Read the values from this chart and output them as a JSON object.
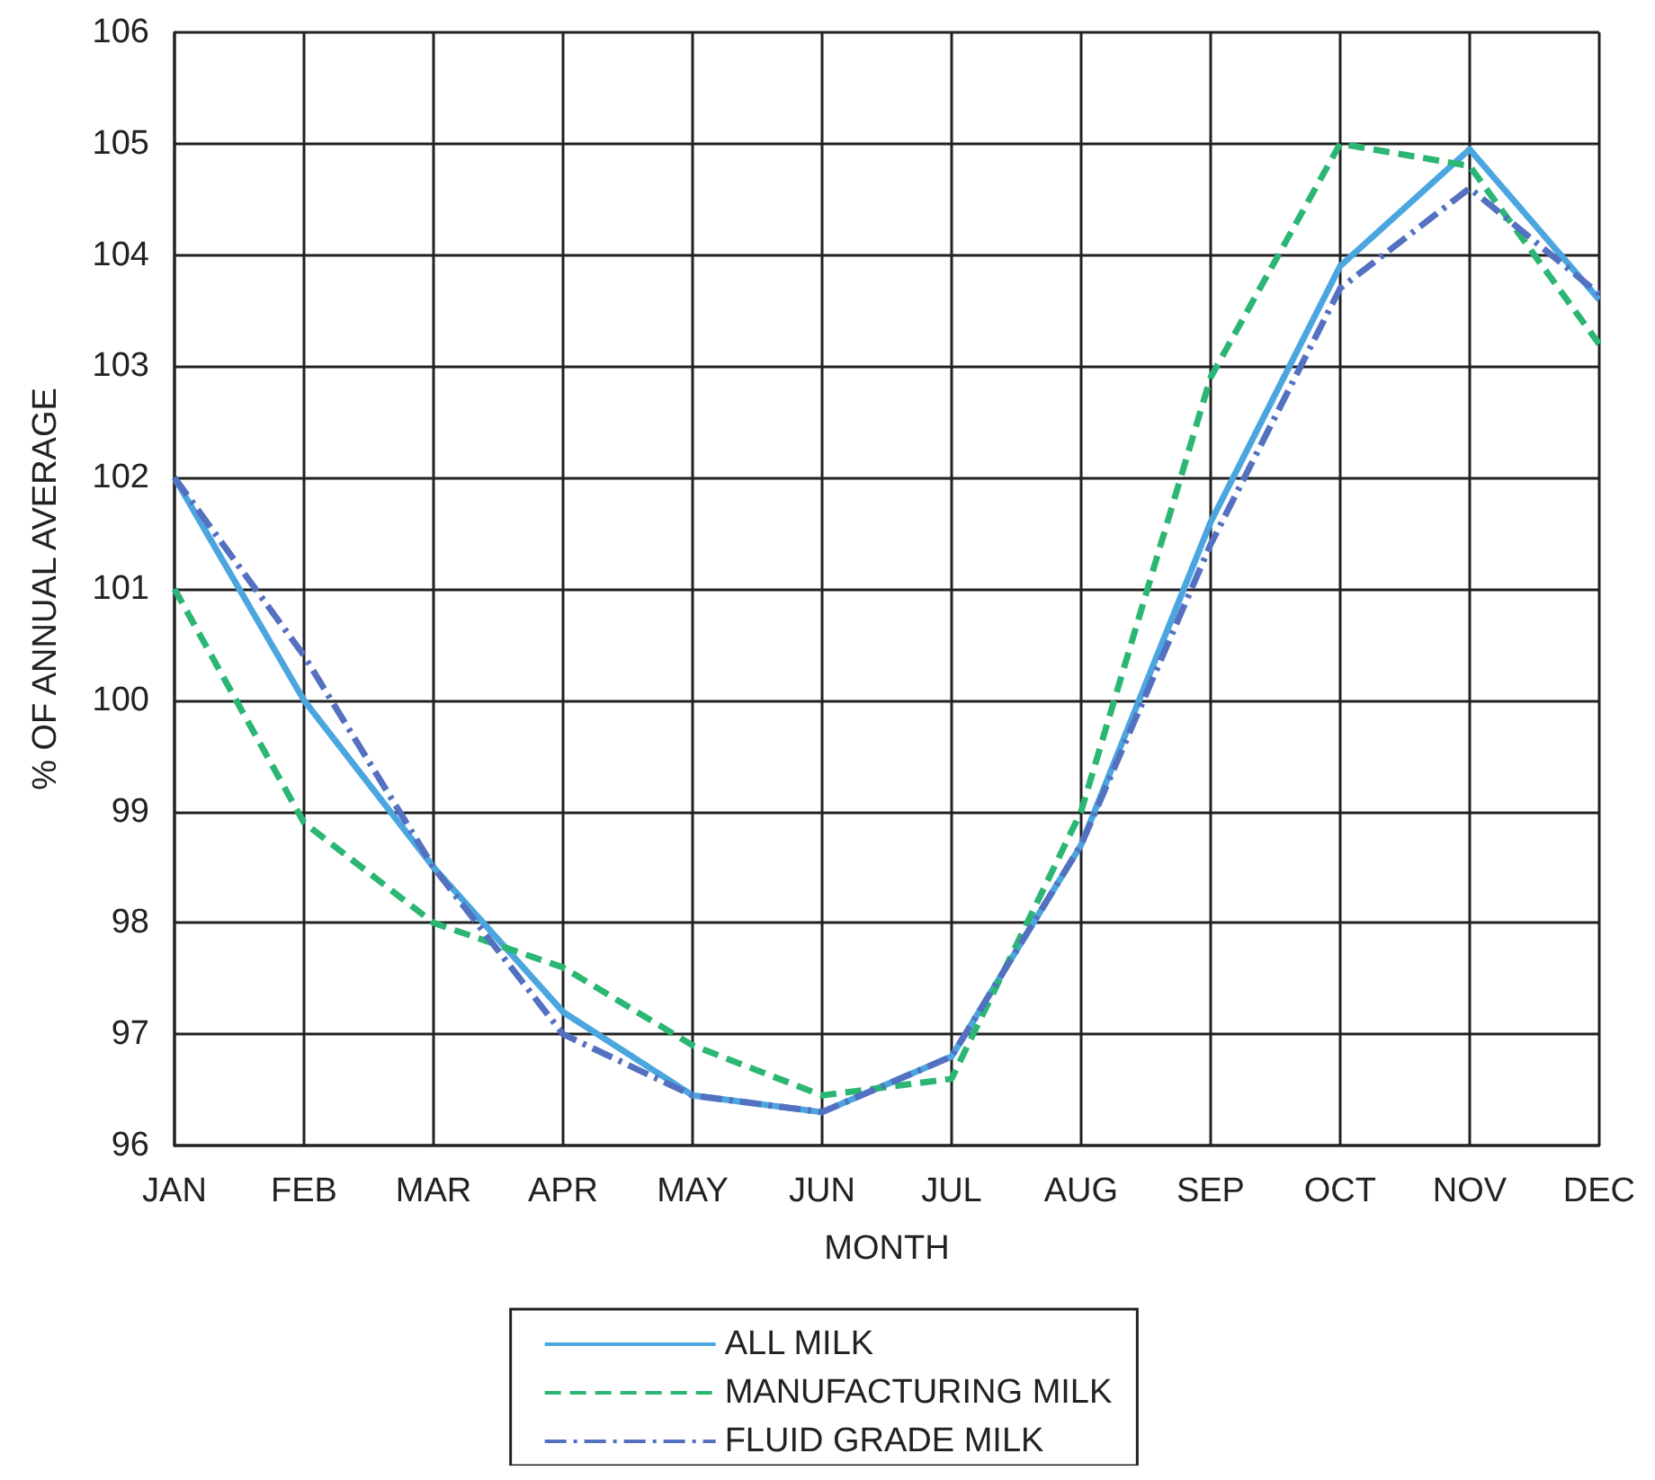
{
  "chart_data": {
    "type": "line",
    "xlabel": "MONTH",
    "ylabel": "% OF ANNUAL AVERAGE",
    "categories": [
      "JAN",
      "FEB",
      "MAR",
      "APR",
      "MAY",
      "JUN",
      "JUL",
      "AUG",
      "SEP",
      "OCT",
      "NOV",
      "DEC"
    ],
    "series": [
      {
        "name": "ALL MILK",
        "color": "#4ba6e0",
        "line_style": "solid",
        "values": [
          102.0,
          100.0,
          98.5,
          97.2,
          96.45,
          96.3,
          96.8,
          98.7,
          101.6,
          103.9,
          104.95,
          103.6
        ]
      },
      {
        "name": "MANUFACTURING MILK",
        "color": "#2bb673",
        "line_style": "dashed",
        "values": [
          101.0,
          98.9,
          98.0,
          97.6,
          96.9,
          96.45,
          96.6,
          99.0,
          102.9,
          105.0,
          104.8,
          103.2
        ]
      },
      {
        "name": "FLUID GRADE MILK",
        "color": "#5470c0",
        "line_style": "dashdot",
        "values": [
          102.0,
          100.4,
          98.5,
          97.0,
          96.45,
          96.3,
          96.8,
          98.7,
          101.4,
          103.7,
          104.6,
          103.65
        ]
      }
    ],
    "ylim": [
      96,
      106
    ],
    "yticks": [
      96,
      97,
      98,
      99,
      100,
      101,
      102,
      103,
      104,
      105,
      106
    ],
    "grid": true,
    "legend": "bottom",
    "marker": "none"
  }
}
